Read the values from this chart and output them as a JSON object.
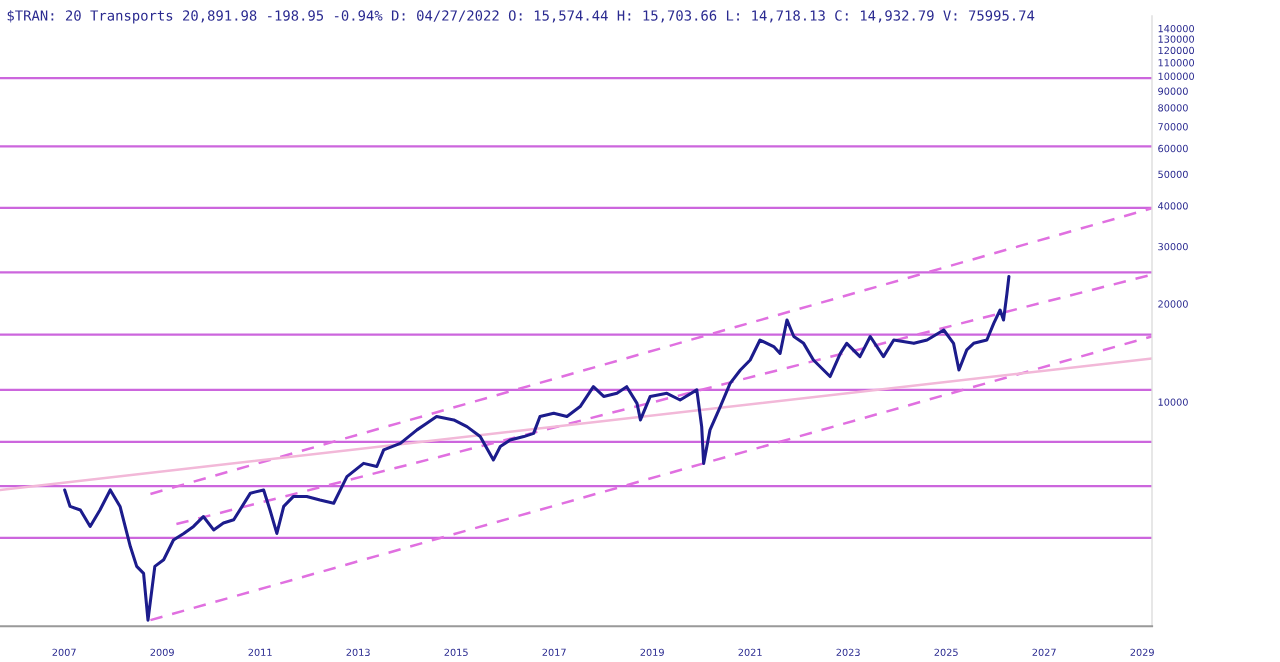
{
  "chart_data": {
    "type": "line",
    "title": "$TRAN: 20 Transports 20,891.98 -198.95 -0.94% D: 04/27/2022 O: 15,574.44 H: 15,703.66 L: 14,718.13 C: 14,932.79 V: 75995.74",
    "log": "y",
    "grid": false,
    "legend": false,
    "xlim": [
      2005.69,
      2029.2
    ],
    "xticks": [
      2007,
      2009,
      2011,
      2013,
      2015,
      2017,
      2019,
      2021,
      2023,
      2025,
      2027,
      2029
    ],
    "ylim": [
      2050,
      153000
    ],
    "yticks": [
      10000,
      20000,
      30000,
      40000,
      50000,
      60000,
      70000,
      80000,
      90000,
      100000,
      110000,
      120000,
      130000,
      140000
    ],
    "ref_lines": [
      {
        "axis": "y",
        "value": 98600,
        "color": "#cc66dd"
      },
      {
        "axis": "y",
        "value": 60900,
        "color": "#cc66dd"
      },
      {
        "axis": "y",
        "value": 39400,
        "color": "#cc66dd"
      },
      {
        "axis": "y",
        "value": 25000,
        "color": "#cc66dd"
      },
      {
        "axis": "y",
        "value": 16100,
        "color": "#cc66dd"
      },
      {
        "axis": "y",
        "value": 10900,
        "color": "#cc66dd"
      },
      {
        "axis": "y",
        "value": 7540,
        "color": "#cc66dd"
      },
      {
        "axis": "y",
        "value": 5520,
        "color": "#cc66dd"
      },
      {
        "axis": "y",
        "value": 3830,
        "color": "#cc66dd"
      }
    ],
    "series": [
      {
        "color": "#1c1c8c",
        "line_style": "solid",
        "x": [
          2007.01,
          2007.12,
          2007.33,
          2007.53,
          2007.73,
          2007.94,
          2008.14,
          2008.35,
          2008.48,
          2008.62,
          2008.71,
          2008.85,
          2009.03,
          2009.23,
          2009.44,
          2009.64,
          2009.84,
          2010.05,
          2010.25,
          2010.46,
          2010.8,
          2011.07,
          2011.2,
          2011.34,
          2011.48,
          2011.68,
          2011.95,
          2012.22,
          2012.5,
          2012.77,
          2013.11,
          2013.38,
          2013.52,
          2013.86,
          2014.2,
          2014.4,
          2014.6,
          2014.95,
          2015.22,
          2015.49,
          2015.76,
          2015.9,
          2016.1,
          2016.38,
          2016.58,
          2016.71,
          2016.99,
          2017.26,
          2017.53,
          2017.8,
          2018.01,
          2018.28,
          2018.48,
          2018.69,
          2018.76,
          2018.96,
          2019.3,
          2019.57,
          2019.91,
          2020.01,
          2020.05,
          2020.18,
          2020.39,
          2020.59,
          2020.8,
          2021.0,
          2021.2,
          2021.48,
          2021.61,
          2021.75,
          2021.89,
          2022.09,
          2022.29,
          2022.63,
          2022.84,
          2022.97,
          2023.24,
          2023.45,
          2023.72,
          2023.93,
          2024.34,
          2024.61,
          2024.95,
          2025.15,
          2025.26,
          2025.42,
          2025.56,
          2025.83,
          2025.97,
          2026.1,
          2026.17,
          2026.24,
          2026.28
        ],
        "values": [
          5370,
          4780,
          4660,
          4150,
          4660,
          5370,
          4780,
          3600,
          3130,
          2980,
          2140,
          3130,
          3280,
          3770,
          3950,
          4150,
          4450,
          4050,
          4250,
          4350,
          5250,
          5370,
          4660,
          3950,
          4780,
          5130,
          5130,
          5000,
          4890,
          5900,
          6480,
          6340,
          7130,
          7460,
          8210,
          8600,
          9020,
          8810,
          8400,
          7830,
          6640,
          7300,
          7640,
          7830,
          8010,
          9020,
          9230,
          9020,
          9680,
          11140,
          10400,
          10630,
          11140,
          9900,
          8810,
          10400,
          10630,
          10140,
          10890,
          8400,
          6480,
          8210,
          9680,
          11400,
          12530,
          13450,
          15490,
          14790,
          14090,
          17850,
          15880,
          15130,
          13450,
          11970,
          14090,
          15130,
          13780,
          15880,
          13780,
          15490,
          15130,
          15490,
          16630,
          15130,
          12530,
          14450,
          15130,
          15490,
          17420,
          19150,
          17850,
          21530,
          24270
        ]
      },
      {
        "color": "#e070e0",
        "line_style": "dashed",
        "x": [
          2008.76,
          2029.2
        ],
        "values": [
          5220,
          39300
        ]
      },
      {
        "color": "#e070e0",
        "line_style": "dashed",
        "x": [
          2009.29,
          2029.2
        ],
        "values": [
          4220,
          24600
        ]
      },
      {
        "color": "#e070e0",
        "line_style": "dashed",
        "x": [
          2008.76,
          2029.2
        ],
        "values": [
          2140,
          15900
        ]
      },
      {
        "color": "#f2b8d8",
        "line_style": "solid",
        "x": [
          2005.69,
          2029.2
        ],
        "values": [
          5370,
          13600
        ]
      }
    ]
  }
}
